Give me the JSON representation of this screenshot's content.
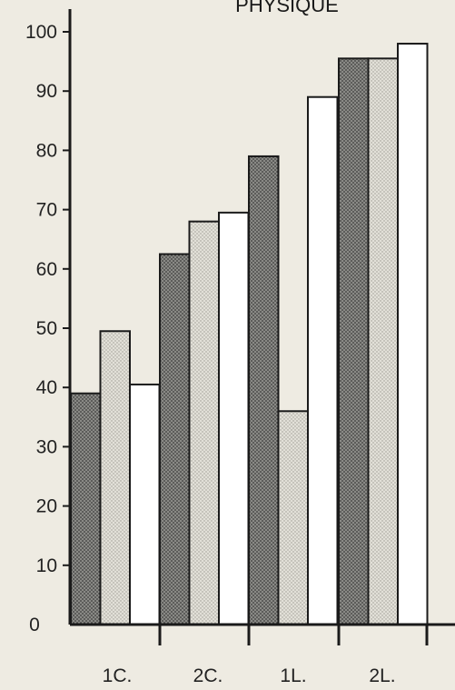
{
  "chart_data": {
    "type": "bar",
    "title": "PHYSIQUE",
    "categories": [
      "1C.",
      "2C.",
      "1L.",
      "2L."
    ],
    "series": [
      {
        "values": [
          39,
          62.5,
          79,
          95.5
        ],
        "color": "#6d6d6d"
      },
      {
        "values": [
          49.5,
          68,
          36,
          95.5
        ],
        "color": "#cfcdc4"
      },
      {
        "values": [
          40.5,
          69.5,
          89,
          98
        ],
        "color": "#ffffff"
      }
    ],
    "ylim": [
      0,
      100
    ],
    "yticks": [
      0,
      10,
      20,
      30,
      40,
      50,
      60,
      70,
      80,
      90,
      100
    ],
    "ytick_labels": [
      "0",
      "10",
      "20",
      "30",
      "40",
      "50",
      "60",
      "70",
      "80",
      "90",
      "100"
    ],
    "xlabel": "",
    "ylabel": "",
    "grid": false,
    "legend": "none"
  }
}
